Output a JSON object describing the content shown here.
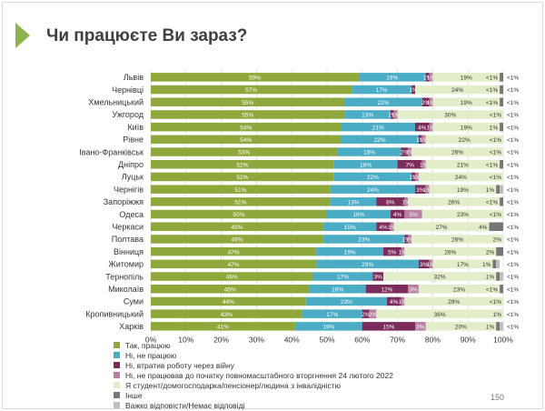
{
  "title": "Чи працюєте Ви зараз?",
  "page_number": "150",
  "chart_data": {
    "type": "bar",
    "orientation": "horizontal",
    "stacked": true,
    "categories": [
      "Львів",
      "Чернівці",
      "Хмельницький",
      "Ужгород",
      "Київ",
      "Рівне",
      "Івано-Франківськ",
      "Дніпро",
      "Луцьк",
      "Чернігів",
      "Запоріжжя",
      "Одеса",
      "Черкаси",
      "Полтава",
      "Вінниця",
      "Житомир",
      "Тернопіль",
      "Миколаїв",
      "Суми",
      "Кропивницький",
      "Харків"
    ],
    "xlim": [
      0,
      100
    ],
    "xticks": [
      "0%",
      "10%",
      "20%",
      "30%",
      "40%",
      "50%",
      "60%",
      "70%",
      "80%",
      "90%",
      "100%"
    ],
    "grid": true,
    "legend_position": "bottom-left",
    "series": [
      {
        "name": "Так, працюю",
        "color": "#8fa83c",
        "text_color": "#ffffff",
        "values": [
          59,
          57,
          55,
          55,
          54,
          54,
          53,
          52,
          52,
          51,
          51,
          50,
          49,
          49,
          47,
          47,
          46,
          45,
          44,
          43,
          41
        ],
        "labels": [
          "59%",
          "57%",
          "55%",
          "55%",
          "54%",
          "54%",
          "53%",
          "52%",
          "52%",
          "51%",
          "51%",
          "50%",
          "49%",
          "49%",
          "47%",
          "47%",
          "46%",
          "45%",
          "44%",
          "43%",
          "41%"
        ]
      },
      {
        "name": "Ні, не працюю",
        "color": "#4bacc6",
        "text_color": "#ffffff",
        "values": [
          19,
          17,
          22,
          13,
          21,
          22,
          18,
          18,
          22,
          24,
          13,
          18,
          15,
          23,
          19,
          29,
          17,
          16,
          23,
          17,
          19
        ],
        "labels": [
          "19%",
          "17%",
          "22%",
          "13%",
          "21%",
          "22%",
          "18%",
          "18%",
          "22%",
          "24%",
          "13%",
          "18%",
          "15%",
          "23%",
          "19%",
          "29%",
          "17%",
          "16%",
          "23%",
          "17%",
          "19%"
        ]
      },
      {
        "name": "Ні, втратив роботу через війну",
        "color": "#7b2c5a",
        "text_color": "#ffffff",
        "values": [
          1,
          1,
          2,
          1,
          4,
          1,
          2,
          7,
          1,
          3,
          8,
          4,
          4,
          1,
          5,
          3,
          3,
          12,
          4,
          2,
          15
        ],
        "labels": [
          "1%",
          "1%",
          "2%",
          "1%",
          "4%",
          "1%",
          "2%",
          "7%",
          "1%",
          "3%",
          "8%",
          "4%",
          "4%",
          "1%",
          "5%",
          "3%",
          "3%",
          "12%",
          "4%",
          "2%",
          "15%"
        ]
      },
      {
        "name": "Ні, не працював до початку повномасштабного вторгнення 24 лютого 2022",
        "color": "#b77fa0",
        "text_color": "#ffffff",
        "values": [
          1,
          0,
          1,
          1,
          1,
          1,
          1,
          1,
          1,
          1,
          1,
          5,
          1,
          1,
          1,
          1,
          0,
          3,
          1,
          2,
          3
        ],
        "labels": [
          "1%",
          "",
          "1%",
          "1%",
          "1%",
          "1%",
          "1%",
          "1%",
          "1%",
          "1%",
          "1%",
          "5%",
          "1%",
          "1%",
          "1%",
          "1%",
          "",
          "3%",
          "1%",
          "2%",
          "3%"
        ]
      },
      {
        "name": "Я студент/домогосподарка/пенсіонер/людина з інвалідністю",
        "color": "#e2eec9",
        "text_color": "#333333",
        "values": [
          19,
          24,
          19,
          30,
          19,
          22,
          26,
          21,
          24,
          19,
          26,
          23,
          27,
          26,
          26,
          17,
          32,
          23,
          29,
          36,
          20
        ],
        "labels": [
          "19%",
          "24%",
          "19%",
          "30%",
          "19%",
          "22%",
          "26%",
          "21%",
          "24%",
          "19%",
          "26%",
          "23%",
          "27%",
          "26%",
          "26%",
          "17%",
          "32%",
          "23%",
          "29%",
          "36%",
          "20%"
        ]
      },
      {
        "name": "Інше",
        "color": "#767676",
        "text_color": "#333333",
        "values": [
          1,
          1,
          1,
          1,
          1,
          1,
          1,
          1,
          1,
          1,
          1,
          1,
          4,
          2,
          2,
          1,
          1,
          1,
          1,
          1,
          1
        ],
        "labels": [
          "<1%",
          "<1%",
          "<1%",
          "<1%",
          "1%",
          "<1%",
          "<1%",
          "<1%",
          "<1%",
          "1%",
          "<1%",
          "<1%",
          "4%",
          "2%",
          "2%",
          "1%",
          "1%",
          "<1%",
          "<1%",
          "1%",
          "1%"
        ]
      },
      {
        "name": "Важко відповісти/Немає відповіді",
        "color": "#bfbfbf",
        "text_color": "#333333",
        "values": [
          1,
          1,
          1,
          1,
          1,
          1,
          1,
          1,
          1,
          1,
          1,
          1,
          1,
          1,
          1,
          1,
          1,
          1,
          1,
          1,
          1
        ],
        "labels": [
          "<1%",
          "<1%",
          "<1%",
          "<1%",
          "<1%",
          "<1%",
          "<1%",
          "<1%",
          "<1%",
          "<1%",
          "<1%",
          "<1%",
          "<1%",
          "<1%",
          "<1%",
          "<1%",
          "<1%",
          "<1%",
          "<1%",
          "<1%",
          "<1%"
        ]
      }
    ]
  }
}
